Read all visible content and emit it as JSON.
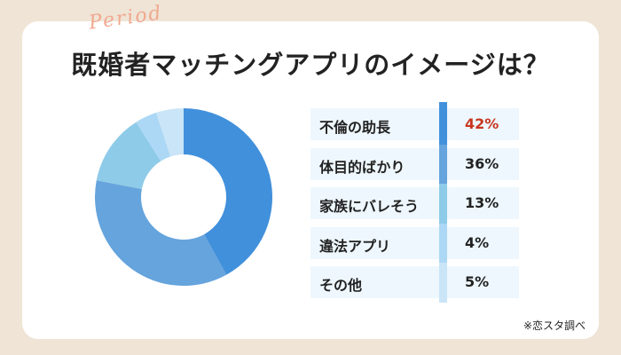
{
  "logo_text": "Period",
  "chart_data": {
    "type": "pie",
    "title": "既婚者マッチングアプリのイメージは？",
    "categories": [
      "不倫の助長",
      "体目的ばかり",
      "家族にバレそう",
      "違法アプリ",
      "その他"
    ],
    "values": [
      42,
      36,
      13,
      4,
      5
    ],
    "value_labels": [
      "42%",
      "36%",
      "13%",
      "4%",
      "5%"
    ],
    "colors": [
      "#4190dc",
      "#65a4dc",
      "#8ecbe8",
      "#acd8f5",
      "#c9e5f7"
    ],
    "highlight_color": "#c8361e",
    "note": "※恋スタ調べ"
  }
}
